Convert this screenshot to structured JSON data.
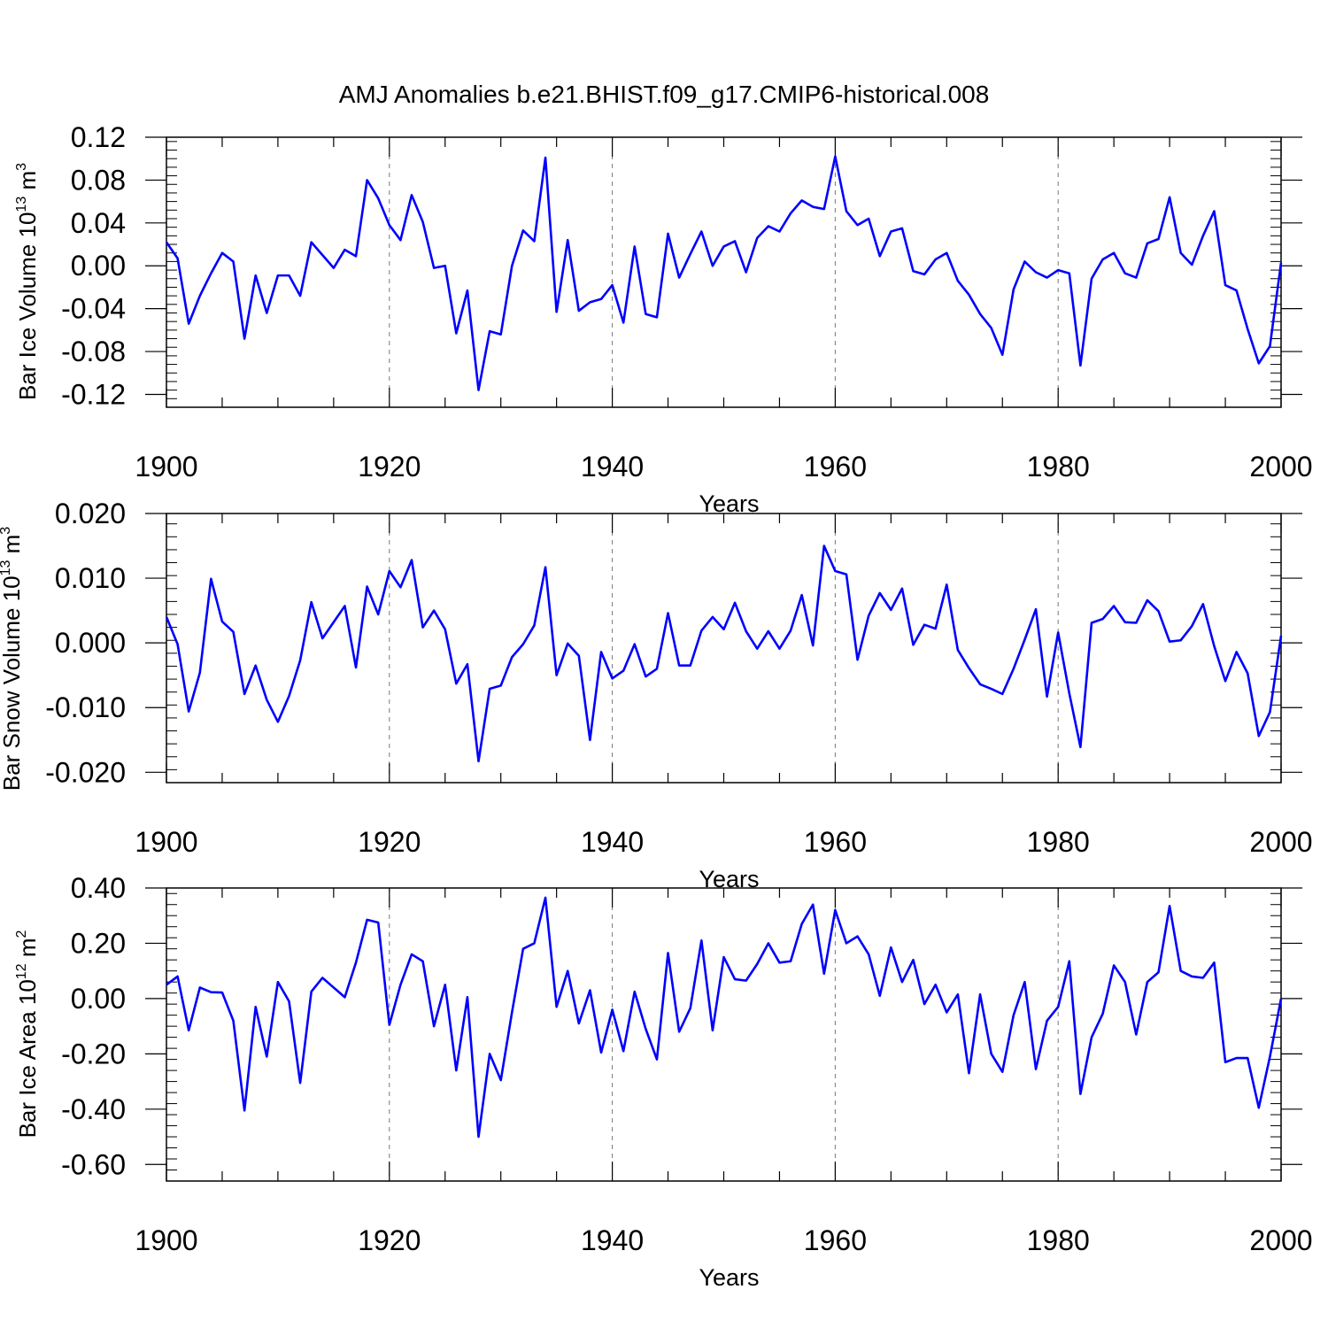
{
  "title": "AMJ Anomalies b.e21.BHIST.f09_g17.CMIP6-historical.008",
  "line_color": "#0000ff",
  "chart_data": [
    {
      "type": "line",
      "ylabel": "Bar Ice Volume 10",
      "ylabel_exp": "13",
      "ylabel_unit": " m",
      "ylabel_unit_exp": "3",
      "xlabel": "Years",
      "xlim": [
        1900,
        2000
      ],
      "ylim": [
        -0.132,
        0.12
      ],
      "x_ticks": [
        "1900",
        "1920",
        "1940",
        "1960",
        "1980",
        "2000"
      ],
      "y_ticks": [
        "0.12",
        "0.08",
        "0.04",
        "0.00",
        "-0.04",
        "-0.08",
        "-0.12"
      ],
      "y_tick_values": [
        0.12,
        0.08,
        0.04,
        0.0,
        -0.04,
        -0.08,
        -0.12
      ],
      "grid": "dashed vertical at 1920, 1940, 1960, 1980",
      "x_start": 1900,
      "values": [
        0.022,
        0.007,
        -0.054,
        -0.028,
        -0.007,
        0.012,
        0.004,
        -0.068,
        -0.009,
        -0.044,
        -0.009,
        -0.009,
        -0.028,
        0.022,
        0.01,
        -0.002,
        0.015,
        0.009,
        0.08,
        0.063,
        0.038,
        0.024,
        0.066,
        0.041,
        -0.002,
        0.0,
        -0.063,
        -0.023,
        -0.116,
        -0.061,
        -0.064,
        0.0,
        0.033,
        0.023,
        0.101,
        -0.043,
        0.024,
        -0.042,
        -0.034,
        -0.031,
        -0.018,
        -0.053,
        0.018,
        -0.045,
        -0.048,
        0.03,
        -0.011,
        0.011,
        0.032,
        0.0,
        0.018,
        0.023,
        -0.006,
        0.026,
        0.037,
        0.032,
        0.049,
        0.061,
        0.055,
        0.053,
        0.102,
        0.051,
        0.038,
        0.044,
        0.009,
        0.032,
        0.035,
        -0.005,
        -0.008,
        0.006,
        0.012,
        -0.014,
        -0.027,
        -0.045,
        -0.058,
        -0.083,
        -0.022,
        0.004,
        -0.006,
        -0.011,
        -0.004,
        -0.007,
        -0.093,
        -0.012,
        0.006,
        0.012,
        -0.007,
        -0.011,
        0.021,
        0.025,
        0.064,
        0.012,
        0.001,
        0.028,
        0.051,
        -0.018,
        -0.023,
        -0.059,
        -0.091,
        -0.075,
        0.003
      ]
    },
    {
      "type": "line",
      "ylabel": "Bar Snow Volume 10",
      "ylabel_exp": "13",
      "ylabel_unit": " m",
      "ylabel_unit_exp": "3",
      "xlabel": "Years",
      "xlim": [
        1900,
        2000
      ],
      "ylim": [
        -0.0216,
        0.02
      ],
      "x_ticks": [
        "1900",
        "1920",
        "1940",
        "1960",
        "1980",
        "2000"
      ],
      "y_ticks": [
        "0.020",
        "0.010",
        "0.000",
        "-0.010",
        "-0.020"
      ],
      "y_tick_values": [
        0.02,
        0.01,
        0.0,
        -0.01,
        -0.02
      ],
      "grid": "dashed vertical at 1920, 1940, 1960, 1980",
      "x_start": 1900,
      "values": [
        0.004,
        -0.0002,
        -0.0106,
        -0.0046,
        0.0099,
        0.0033,
        0.0017,
        -0.0079,
        -0.0035,
        -0.0088,
        -0.0122,
        -0.0082,
        -0.0027,
        0.0063,
        0.0007,
        0.0032,
        0.0057,
        -0.0038,
        0.0087,
        0.0044,
        0.0111,
        0.0086,
        0.0128,
        0.0024,
        0.005,
        0.0021,
        -0.0063,
        -0.0033,
        -0.0183,
        -0.0071,
        -0.0066,
        -0.0022,
        -0.0002,
        0.0027,
        0.0117,
        -0.005,
        -0.0001,
        -0.002,
        -0.015,
        -0.0014,
        -0.0055,
        -0.0043,
        -0.0002,
        -0.0052,
        -0.004,
        0.0046,
        -0.0035,
        -0.0035,
        0.0019,
        0.004,
        0.0021,
        0.0062,
        0.0018,
        -0.0009,
        0.0018,
        -0.0009,
        0.0019,
        0.0074,
        -0.0004,
        0.015,
        0.0111,
        0.0106,
        -0.0026,
        0.0042,
        0.0077,
        0.0051,
        0.0084,
        -0.0003,
        0.0028,
        0.0022,
        0.009,
        -0.0011,
        -0.0039,
        -0.0064,
        -0.0071,
        -0.0079,
        -0.004,
        0.0005,
        0.0052,
        -0.0083,
        0.0016,
        -0.0078,
        -0.0161,
        0.0031,
        0.0037,
        0.0057,
        0.0032,
        0.0031,
        0.0066,
        0.0049,
        0.0002,
        0.0004,
        0.0026,
        0.006,
        -0.0005,
        -0.0059,
        -0.0014,
        -0.0047,
        -0.0144,
        -0.0107,
        0.0011
      ]
    },
    {
      "type": "line",
      "ylabel": "Bar Ice Area 10",
      "ylabel_exp": "12",
      "ylabel_unit": " m",
      "ylabel_unit_exp": "2",
      "xlabel": "Years",
      "xlim": [
        1900,
        2000
      ],
      "ylim": [
        -0.66,
        0.4
      ],
      "x_ticks": [
        "1900",
        "1920",
        "1940",
        "1960",
        "1980",
        "2000"
      ],
      "y_ticks": [
        "0.40",
        "0.20",
        "0.00",
        "-0.20",
        "-0.40",
        "-0.60"
      ],
      "y_tick_values": [
        0.4,
        0.2,
        0.0,
        -0.2,
        -0.4,
        -0.6
      ],
      "grid": "dashed vertical at 1920, 1940, 1960, 1980",
      "x_start": 1900,
      "values": [
        0.05,
        0.08,
        -0.115,
        0.04,
        0.023,
        0.022,
        -0.08,
        -0.405,
        -0.03,
        -0.21,
        0.06,
        -0.01,
        -0.305,
        0.025,
        0.075,
        0.04,
        0.005,
        0.13,
        0.285,
        0.275,
        -0.095,
        0.05,
        0.16,
        0.135,
        -0.1,
        0.05,
        -0.26,
        0.005,
        -0.5,
        -0.2,
        -0.295,
        -0.05,
        0.18,
        0.2,
        0.365,
        -0.03,
        0.1,
        -0.09,
        0.03,
        -0.195,
        -0.04,
        -0.19,
        0.025,
        -0.11,
        -0.22,
        0.165,
        -0.12,
        -0.035,
        0.21,
        -0.115,
        0.15,
        0.07,
        0.065,
        0.125,
        0.2,
        0.13,
        0.135,
        0.27,
        0.34,
        0.09,
        0.32,
        0.2,
        0.225,
        0.16,
        0.01,
        0.185,
        0.06,
        0.14,
        -0.02,
        0.05,
        -0.05,
        0.015,
        -0.27,
        0.015,
        -0.2,
        -0.265,
        -0.06,
        0.06,
        -0.255,
        -0.08,
        -0.03,
        0.135,
        -0.345,
        -0.14,
        -0.055,
        0.12,
        0.06,
        -0.13,
        0.06,
        0.095,
        0.335,
        0.1,
        0.08,
        0.075,
        0.13,
        -0.23,
        -0.215,
        -0.215,
        -0.395,
        -0.21,
        0.0
      ]
    }
  ]
}
